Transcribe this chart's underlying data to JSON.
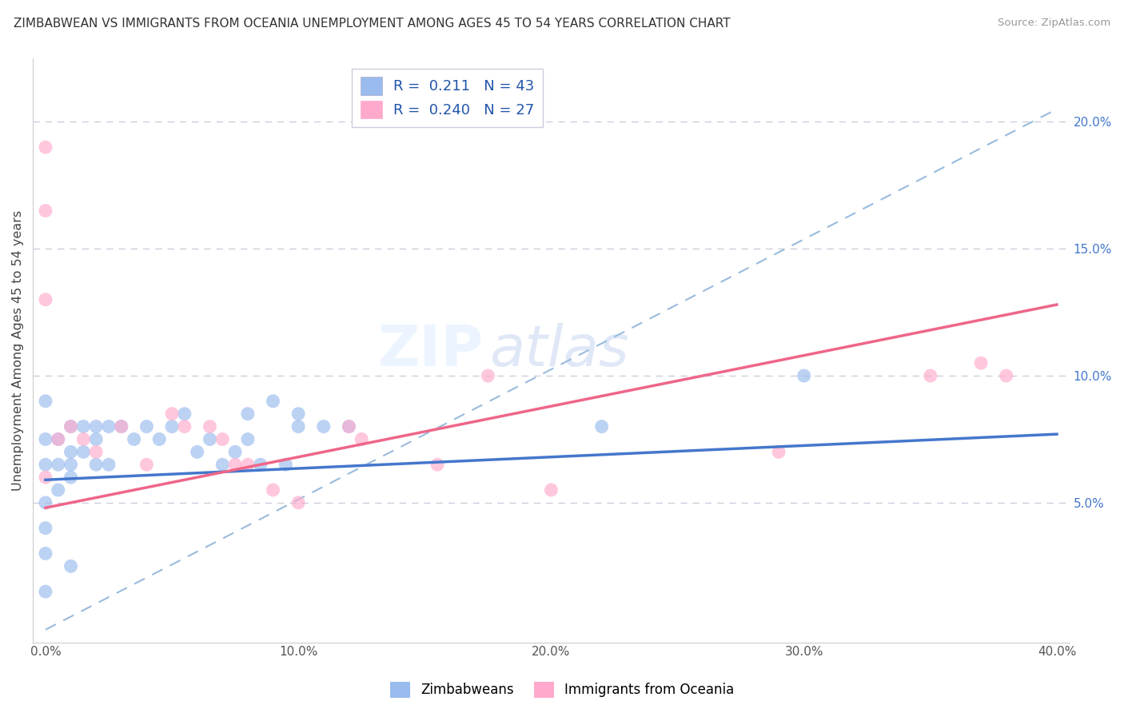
{
  "title": "ZIMBABWEAN VS IMMIGRANTS FROM OCEANIA UNEMPLOYMENT AMONG AGES 45 TO 54 YEARS CORRELATION CHART",
  "source": "Source: ZipAtlas.com",
  "ylabel": "Unemployment Among Ages 45 to 54 years",
  "xlabel_ticks": [
    "0.0%",
    "10.0%",
    "20.0%",
    "30.0%",
    "40.0%"
  ],
  "xlabel_vals": [
    0.0,
    0.1,
    0.2,
    0.3,
    0.4
  ],
  "ylabel_right_ticks": [
    "5.0%",
    "10.0%",
    "15.0%",
    "20.0%"
  ],
  "ylabel_right_vals": [
    0.05,
    0.1,
    0.15,
    0.2
  ],
  "xlim": [
    -0.005,
    0.405
  ],
  "ylim": [
    -0.005,
    0.225
  ],
  "legend_r1": "R =  0.211",
  "legend_n1": "N = 43",
  "legend_r2": "R =  0.240",
  "legend_n2": "N = 27",
  "color_blue": "#99BBEE",
  "color_pink": "#FFAACC",
  "color_blue_line": "#4477CC",
  "color_pink_line": "#EE6688",
  "color_dashed": "#99BBDD",
  "watermark_zip": "ZIP",
  "watermark_atlas": "atlas",
  "blue_x": [
    0.0,
    0.0,
    0.0,
    0.0,
    0.0,
    0.0,
    0.0,
    0.005,
    0.005,
    0.005,
    0.01,
    0.01,
    0.01,
    0.01,
    0.01,
    0.015,
    0.015,
    0.02,
    0.02,
    0.02,
    0.025,
    0.025,
    0.03,
    0.035,
    0.04,
    0.045,
    0.05,
    0.055,
    0.06,
    0.065,
    0.07,
    0.075,
    0.08,
    0.08,
    0.085,
    0.09,
    0.095,
    0.1,
    0.1,
    0.11,
    0.12,
    0.22,
    0.3
  ],
  "blue_y": [
    0.09,
    0.075,
    0.065,
    0.05,
    0.04,
    0.03,
    0.015,
    0.075,
    0.065,
    0.055,
    0.08,
    0.07,
    0.065,
    0.06,
    0.025,
    0.08,
    0.07,
    0.08,
    0.075,
    0.065,
    0.08,
    0.065,
    0.08,
    0.075,
    0.08,
    0.075,
    0.08,
    0.085,
    0.07,
    0.075,
    0.065,
    0.07,
    0.075,
    0.085,
    0.065,
    0.09,
    0.065,
    0.08,
    0.085,
    0.08,
    0.08,
    0.08,
    0.1
  ],
  "pink_x": [
    0.0,
    0.0,
    0.0,
    0.0,
    0.005,
    0.01,
    0.015,
    0.02,
    0.03,
    0.04,
    0.05,
    0.055,
    0.065,
    0.07,
    0.075,
    0.08,
    0.09,
    0.1,
    0.12,
    0.125,
    0.155,
    0.175,
    0.2,
    0.29,
    0.35,
    0.37,
    0.38
  ],
  "pink_y": [
    0.19,
    0.165,
    0.13,
    0.06,
    0.075,
    0.08,
    0.075,
    0.07,
    0.08,
    0.065,
    0.085,
    0.08,
    0.08,
    0.075,
    0.065,
    0.065,
    0.055,
    0.05,
    0.08,
    0.075,
    0.065,
    0.1,
    0.055,
    0.07,
    0.1,
    0.105,
    0.1
  ],
  "blue_line_x0": 0.0,
  "blue_line_x1": 0.4,
  "blue_line_y0": 0.059,
  "blue_line_y1": 0.077,
  "pink_line_x0": 0.0,
  "pink_line_x1": 0.4,
  "pink_line_y0": 0.048,
  "pink_line_y1": 0.128,
  "dash_line_x0": 0.0,
  "dash_line_x1": 0.4,
  "dash_line_y0": 0.0,
  "dash_line_y1": 0.205,
  "background_color": "#FFFFFF",
  "grid_color": "#CCCCDD"
}
